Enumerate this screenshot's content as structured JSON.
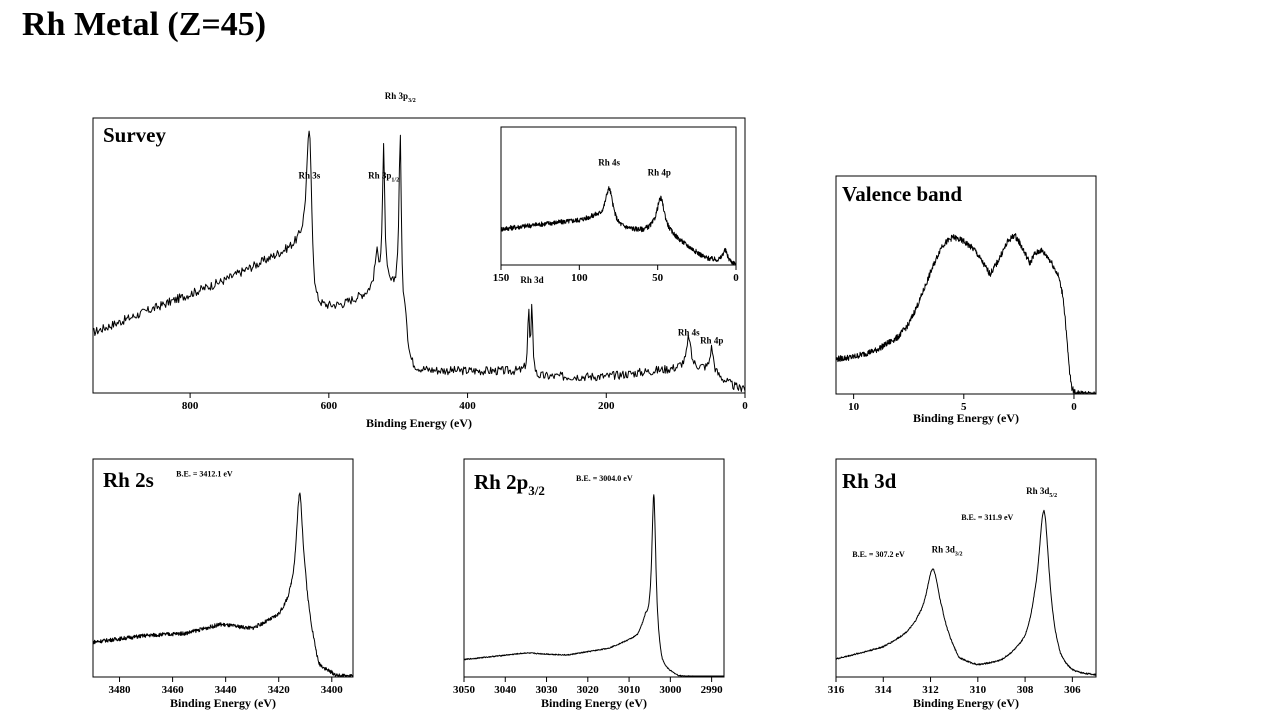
{
  "page_title": "Rh Metal (Z=45)",
  "chart_data": [
    {
      "id": "survey",
      "type": "line",
      "title": "Survey",
      "xlabel": "Binding Energy (eV)",
      "ylabel": "",
      "xlim": [
        940,
        0
      ],
      "ylim": [
        0,
        100
      ],
      "xticks": [
        800,
        600,
        400,
        200,
        0
      ],
      "baseline": [
        [
          940,
          22
        ],
        [
          850,
          31
        ],
        [
          750,
          41
        ],
        [
          660,
          52
        ],
        [
          632,
          56
        ],
        [
          620,
          30
        ],
        [
          580,
          32
        ],
        [
          545,
          36
        ],
        [
          528,
          40
        ],
        [
          500,
          35
        ],
        [
          492,
          8
        ],
        [
          460,
          8
        ],
        [
          320,
          8
        ],
        [
          309,
          10
        ],
        [
          300,
          6
        ],
        [
          200,
          6
        ],
        [
          100,
          9
        ],
        [
          90,
          10
        ],
        [
          60,
          9
        ],
        [
          45,
          7
        ],
        [
          20,
          3
        ],
        [
          5,
          1
        ],
        [
          0,
          0
        ]
      ],
      "noise": 1.6,
      "peaks": [
        {
          "x": 628,
          "h": 48,
          "w": 4
        },
        {
          "x": 521,
          "h": 49,
          "w": 2
        },
        {
          "x": 531,
          "h": 10,
          "w": 3
        },
        {
          "x": 497,
          "h": 64,
          "w": 2
        },
        {
          "x": 490,
          "h": 20,
          "w": 4
        },
        {
          "x": 307,
          "h": 24,
          "w": 1.2
        },
        {
          "x": 312,
          "h": 22,
          "w": 1.2
        },
        {
          "x": 81,
          "h": 11,
          "w": 3
        },
        {
          "x": 48,
          "h": 9,
          "w": 3
        },
        {
          "x": 3,
          "h": 3,
          "w": 1.5
        }
      ],
      "annotations": [
        {
          "label": "Rh 3s",
          "x": 628,
          "y": 78
        },
        {
          "label": "Rh 3p",
          "sub": "1/2",
          "x": 521,
          "y": 78
        },
        {
          "label": "Rh 3p",
          "sub": "3/2",
          "x": 497,
          "y": 107
        },
        {
          "label": "Rh 3d",
          "x": 307,
          "y": 40
        },
        {
          "label": "Rh 4s",
          "x": 81,
          "y": 21
        },
        {
          "label": "Rh 4p",
          "x": 48,
          "y": 18
        }
      ]
    },
    {
      "id": "survey-inset",
      "type": "line",
      "title": "",
      "xlabel": "",
      "ylabel": "",
      "xlim": [
        150,
        0
      ],
      "ylim": [
        0,
        100
      ],
      "xticks": [
        150,
        100,
        50,
        0
      ],
      "baseline": [
        [
          150,
          26
        ],
        [
          120,
          30
        ],
        [
          100,
          32
        ],
        [
          90,
          34
        ],
        [
          75,
          26
        ],
        [
          60,
          24
        ],
        [
          50,
          25
        ],
        [
          40,
          20
        ],
        [
          20,
          5
        ],
        [
          10,
          2
        ],
        [
          0,
          0
        ]
      ],
      "noise": 1.8,
      "peaks": [
        {
          "x": 81,
          "h": 26,
          "w": 3
        },
        {
          "x": 48,
          "h": 24,
          "w": 3
        },
        {
          "x": 7,
          "h": 9,
          "w": 2
        }
      ],
      "annotations": [
        {
          "label": "Rh 4s",
          "x": 81,
          "y": 72
        },
        {
          "label": "Rh 4p",
          "x": 49,
          "y": 65
        }
      ]
    },
    {
      "id": "valence-band",
      "type": "line",
      "title": "Valence band",
      "xlabel": "Binding Energy (eV)",
      "ylabel": "",
      "xlim": [
        10.8,
        -1
      ],
      "ylim": [
        0,
        100
      ],
      "xticks": [
        10,
        5,
        0
      ],
      "points": [
        [
          10.8,
          16
        ],
        [
          10,
          17
        ],
        [
          9,
          20
        ],
        [
          8,
          26
        ],
        [
          7.5,
          32
        ],
        [
          7,
          43
        ],
        [
          6.5,
          56
        ],
        [
          6,
          68
        ],
        [
          5.5,
          72
        ],
        [
          5,
          70
        ],
        [
          4.5,
          66
        ],
        [
          4,
          58
        ],
        [
          3.8,
          55
        ],
        [
          3.5,
          60
        ],
        [
          3,
          70
        ],
        [
          2.7,
          73
        ],
        [
          2.5,
          70
        ],
        [
          2.2,
          64
        ],
        [
          2,
          60
        ],
        [
          1.8,
          64
        ],
        [
          1.5,
          66
        ],
        [
          1.2,
          63
        ],
        [
          1,
          60
        ],
        [
          0.7,
          54
        ],
        [
          0.5,
          45
        ],
        [
          0.4,
          35
        ],
        [
          0.3,
          22
        ],
        [
          0.2,
          10
        ],
        [
          0.1,
          3
        ],
        [
          0,
          1
        ],
        [
          -0.3,
          0
        ],
        [
          -1,
          0
        ]
      ],
      "noise": 1.4,
      "annotations": []
    },
    {
      "id": "rh-2s",
      "type": "line",
      "title": "Rh 2s",
      "xlabel": "Binding Energy (eV)",
      "ylabel": "",
      "xlim": [
        3490,
        3392
      ],
      "ylim": [
        0,
        100
      ],
      "xticks": [
        3480,
        3460,
        3440,
        3420,
        3400
      ],
      "baseline": [
        [
          3490,
          16
        ],
        [
          3470,
          19
        ],
        [
          3455,
          20
        ],
        [
          3442,
          24
        ],
        [
          3430,
          22
        ],
        [
          3420,
          27
        ],
        [
          3415,
          33
        ],
        [
          3410,
          31
        ],
        [
          3405,
          4
        ],
        [
          3398,
          0
        ],
        [
          3392,
          0
        ]
      ],
      "noise": 0.9,
      "peaks": [
        {
          "x": 3412.1,
          "h": 52,
          "w": 1.6
        }
      ],
      "annotations": [
        {
          "label": "B.E. = 3412.1 eV",
          "x": 3448,
          "y": 92
        }
      ]
    },
    {
      "id": "rh-2p3-2",
      "type": "line",
      "title": "Rh 2p",
      "title_sub": "3/2",
      "xlabel": "Binding Energy (eV)",
      "ylabel": "",
      "xlim": [
        3050,
        2987
      ],
      "ylim": [
        0,
        100
      ],
      "xticks": [
        3050,
        3040,
        3030,
        3020,
        3010,
        3000,
        2990
      ],
      "baseline": [
        [
          3050,
          8
        ],
        [
          3035,
          11
        ],
        [
          3025,
          10
        ],
        [
          3015,
          13
        ],
        [
          3008,
          18
        ],
        [
          3006,
          24
        ],
        [
          3002,
          3
        ],
        [
          2998,
          0
        ],
        [
          2987,
          0
        ]
      ],
      "noise": 0.25,
      "peaks": [
        {
          "x": 3004,
          "h": 70,
          "w": 0.6
        }
      ],
      "annotations": [
        {
          "label": "B.E. = 3004.0 eV",
          "x": 3016,
          "y": 90
        }
      ]
    },
    {
      "id": "rh-3d",
      "type": "line",
      "title": "Rh 3d",
      "xlabel": "Binding Energy (eV)",
      "ylabel": "",
      "xlim": [
        316,
        305
      ],
      "ylim": [
        0,
        100
      ],
      "xticks": [
        316,
        314,
        312,
        310,
        308,
        306
      ],
      "baseline": [
        [
          316,
          8
        ],
        [
          314,
          13
        ],
        [
          313,
          18
        ],
        [
          312.5,
          21
        ],
        [
          311.5,
          18
        ],
        [
          310.8,
          6
        ],
        [
          310,
          4
        ],
        [
          309,
          6
        ],
        [
          308,
          12
        ],
        [
          307.6,
          18
        ],
        [
          307,
          9
        ],
        [
          306.5,
          2
        ],
        [
          306,
          0
        ],
        [
          305,
          0
        ]
      ],
      "noise": 0.35,
      "peaks": [
        {
          "x": 311.9,
          "h": 30,
          "w": 0.35
        },
        {
          "x": 307.2,
          "h": 64,
          "w": 0.28
        }
      ],
      "annotations": [
        {
          "label": "B.E. = 307.2 eV",
          "x": 314.2,
          "y": 55
        },
        {
          "label": "Rh 3d",
          "sub": "3/2",
          "x": 311.3,
          "y": 57
        },
        {
          "label": "B.E. = 311.9 eV",
          "x": 309.6,
          "y": 72
        },
        {
          "label": "Rh 3d",
          "sub": "5/2",
          "x": 307.3,
          "y": 84
        }
      ]
    }
  ]
}
